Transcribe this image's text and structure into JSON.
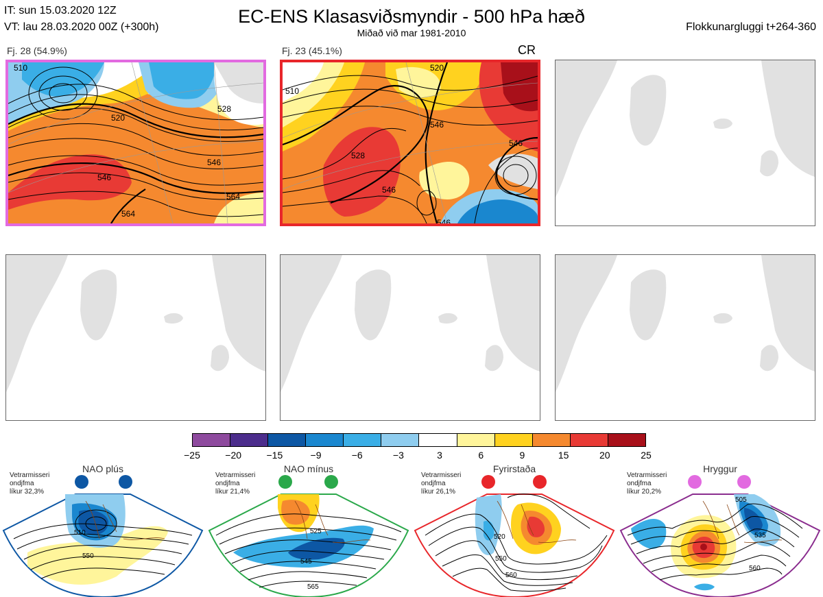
{
  "header": {
    "it_line": "IT: sun 15.03.2020 12Z",
    "vt_line": "VT: lau 28.03.2020 00Z  (+300h)",
    "title": "EC-ENS Klasasviðsmyndir - 500 hPa hæð",
    "subtitle": "Miðað við mar 1981-2010",
    "window": "Flokkunargluggi t+264-360"
  },
  "chart_data": {
    "type": "heatmap",
    "title": "EC-ENS Klasasviðsmyndir - 500 hPa hæð",
    "subtitle": "Miðað við mar 1981-2010",
    "colorbar": {
      "ticks": [
        "−25",
        "−20",
        "−15",
        "−9",
        "−6",
        "−3",
        "3",
        "6",
        "9",
        "15",
        "20",
        "25"
      ],
      "colors": [
        "#8e4a9e",
        "#4c2d8c",
        "#0d57a4",
        "#1a87cf",
        "#3aaee6",
        "#8fcdef",
        "#ffffff",
        "#fff59b",
        "#ffd21f",
        "#f5892f",
        "#e83a35",
        "#a8101a"
      ]
    },
    "clusters": [
      {
        "label": "Fj. 28 (54.9%)",
        "members": 28,
        "percent": 54.9,
        "frame_color": "#e26ae0",
        "contour_labels": [
          "510",
          "520",
          "528",
          "546",
          "546",
          "564",
          "564"
        ]
      },
      {
        "label": "Fj. 23 (45.1%)",
        "members": 23,
        "percent": 45.1,
        "frame_color": "#e8262a",
        "regime_code": "CR",
        "contour_labels": [
          "510",
          "520",
          "528",
          "546",
          "546",
          "546",
          "546"
        ]
      }
    ],
    "empty_panels": 4,
    "regimes": [
      {
        "name": "NAO plús",
        "season": "Vetrarmisseri",
        "center": "ondjfma",
        "likelihood": "líkur 32,3%",
        "color": "#0d57a4",
        "dot_color": "#0d57a4",
        "contour_labels": [
          "510",
          "550"
        ]
      },
      {
        "name": "NAO mínus",
        "season": "Vetrarmisseri",
        "center": "ondjfma",
        "likelihood": "líkur 21,4%",
        "color": "#2aa84a",
        "dot_color": "#2aa84a",
        "contour_labels": [
          "525",
          "545",
          "565"
        ]
      },
      {
        "name": "Fyrirstaða",
        "season": "Vetrarmisseri",
        "center": "ondjfma",
        "likelihood": "líkur 26,1%",
        "color": "#e8262a",
        "dot_color": "#e8262a",
        "contour_labels": [
          "520",
          "550",
          "560"
        ]
      },
      {
        "name": "Hryggur",
        "season": "Vetrarmisseri",
        "center": "ondjfma",
        "likelihood": "líkur 20,2%",
        "color": "#8a2c8e",
        "dot_color": "#e26ae0",
        "contour_labels": [
          "505",
          "535",
          "560"
        ]
      }
    ]
  }
}
